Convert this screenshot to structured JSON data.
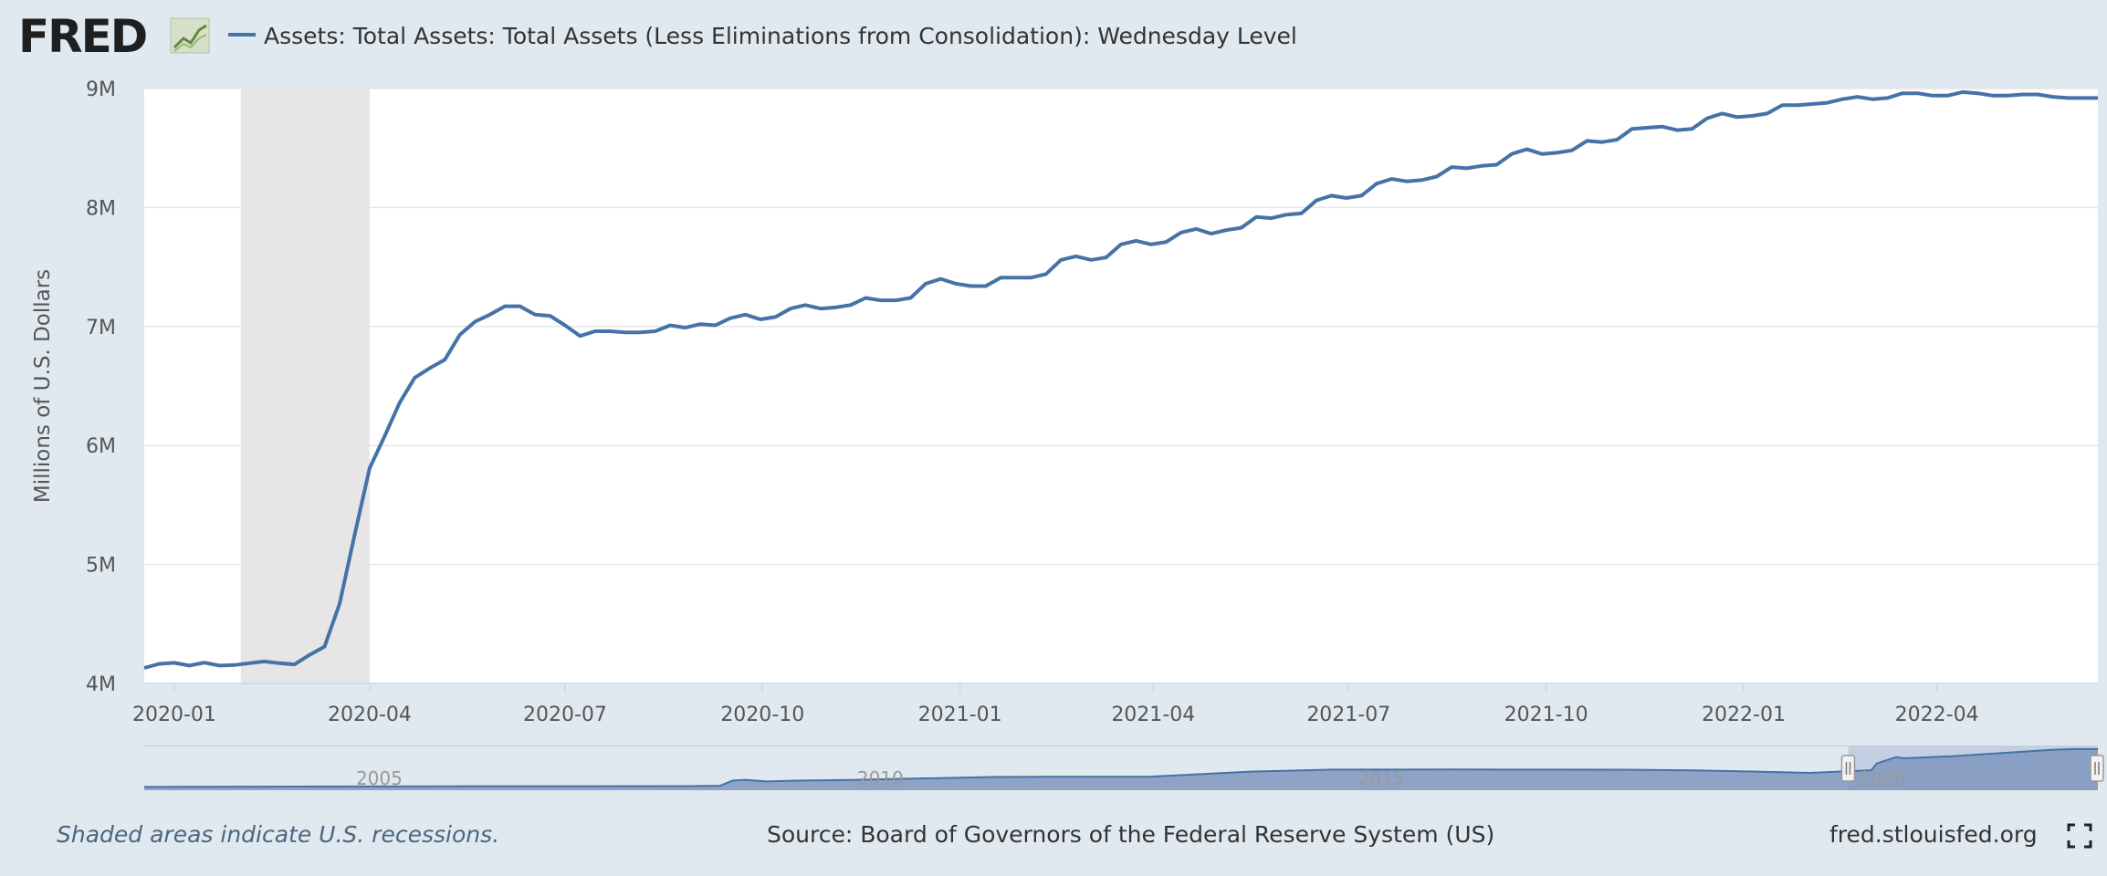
{
  "logo": {
    "text": "FRED"
  },
  "legend": {
    "series_label": "Assets: Total Assets: Total Assets (Less Eliminations from Consolidation): Wednesday Level"
  },
  "colors": {
    "line": "#4572a7",
    "recession": "#e6e6e6",
    "background": "#e1e9f0",
    "navigator_fill": "#7f96bd"
  },
  "footer": {
    "note": "Shaded areas indicate U.S. recessions.",
    "source": "Source: Board of Governors of the Federal Reserve System (US)",
    "link": "fred.stlouisfed.org"
  },
  "chart_data": {
    "type": "line",
    "title": "Assets: Total Assets: Total Assets (Less Eliminations from Consolidation): Wednesday Level",
    "xlabel": "",
    "ylabel": "Millions of U.S. Dollars",
    "ylim": [
      4000000,
      9000000
    ],
    "xlim": [
      "2019-12-18",
      "2022-06-15"
    ],
    "grid": true,
    "yticks": [
      {
        "value": 4000000,
        "label": "4M"
      },
      {
        "value": 5000000,
        "label": "5M"
      },
      {
        "value": 6000000,
        "label": "6M"
      },
      {
        "value": 7000000,
        "label": "7M"
      },
      {
        "value": 8000000,
        "label": "8M"
      },
      {
        "value": 9000000,
        "label": "9M"
      }
    ],
    "xticks": [
      {
        "date": "2020-01-01",
        "label": "2020-01"
      },
      {
        "date": "2020-04-01",
        "label": "2020-04"
      },
      {
        "date": "2020-07-01",
        "label": "2020-07"
      },
      {
        "date": "2020-10-01",
        "label": "2020-10"
      },
      {
        "date": "2021-01-01",
        "label": "2021-01"
      },
      {
        "date": "2021-04-01",
        "label": "2021-04"
      },
      {
        "date": "2021-07-01",
        "label": "2021-07"
      },
      {
        "date": "2021-10-01",
        "label": "2021-10"
      },
      {
        "date": "2022-01-01",
        "label": "2022-01"
      },
      {
        "date": "2022-04-01",
        "label": "2022-04"
      }
    ],
    "recessions": [
      {
        "start": "2020-02-01",
        "end": "2020-04-01"
      }
    ],
    "series": [
      {
        "name": "Assets: Total Assets: Total Assets (Less Eliminations from Consolidation): Wednesday Level",
        "points": [
          [
            "2019-12-18",
            4130000
          ],
          [
            "2019-12-25",
            4165000
          ],
          [
            "2020-01-01",
            4173000
          ],
          [
            "2020-01-08",
            4150000
          ],
          [
            "2020-01-15",
            4175000
          ],
          [
            "2020-01-22",
            4150000
          ],
          [
            "2020-01-29",
            4155000
          ],
          [
            "2020-02-05",
            4170000
          ],
          [
            "2020-02-12",
            4185000
          ],
          [
            "2020-02-19",
            4170000
          ],
          [
            "2020-02-26",
            4160000
          ],
          [
            "2020-03-04",
            4240000
          ],
          [
            "2020-03-11",
            4310000
          ],
          [
            "2020-03-18",
            4670000
          ],
          [
            "2020-03-25",
            5250000
          ],
          [
            "2020-04-01",
            5810000
          ],
          [
            "2020-04-08",
            6080000
          ],
          [
            "2020-04-15",
            6360000
          ],
          [
            "2020-04-22",
            6570000
          ],
          [
            "2020-04-29",
            6650000
          ],
          [
            "2020-05-06",
            6720000
          ],
          [
            "2020-05-13",
            6930000
          ],
          [
            "2020-05-20",
            7040000
          ],
          [
            "2020-05-27",
            7100000
          ],
          [
            "2020-06-03",
            7170000
          ],
          [
            "2020-06-10",
            7170000
          ],
          [
            "2020-06-17",
            7100000
          ],
          [
            "2020-06-24",
            7090000
          ],
          [
            "2020-07-01",
            7010000
          ],
          [
            "2020-07-08",
            6920000
          ],
          [
            "2020-07-15",
            6960000
          ],
          [
            "2020-07-22",
            6960000
          ],
          [
            "2020-07-29",
            6950000
          ],
          [
            "2020-08-05",
            6950000
          ],
          [
            "2020-08-12",
            6960000
          ],
          [
            "2020-08-19",
            7010000
          ],
          [
            "2020-08-26",
            6990000
          ],
          [
            "2020-09-02",
            7020000
          ],
          [
            "2020-09-09",
            7010000
          ],
          [
            "2020-09-16",
            7070000
          ],
          [
            "2020-09-23",
            7100000
          ],
          [
            "2020-09-30",
            7060000
          ],
          [
            "2020-10-07",
            7080000
          ],
          [
            "2020-10-14",
            7150000
          ],
          [
            "2020-10-21",
            7180000
          ],
          [
            "2020-10-28",
            7150000
          ],
          [
            "2020-11-04",
            7160000
          ],
          [
            "2020-11-11",
            7180000
          ],
          [
            "2020-11-18",
            7240000
          ],
          [
            "2020-11-25",
            7220000
          ],
          [
            "2020-12-02",
            7220000
          ],
          [
            "2020-12-09",
            7240000
          ],
          [
            "2020-12-16",
            7360000
          ],
          [
            "2020-12-23",
            7400000
          ],
          [
            "2020-12-30",
            7360000
          ],
          [
            "2021-01-06",
            7340000
          ],
          [
            "2021-01-13",
            7340000
          ],
          [
            "2021-01-20",
            7410000
          ],
          [
            "2021-01-27",
            7410000
          ],
          [
            "2021-02-03",
            7410000
          ],
          [
            "2021-02-10",
            7440000
          ],
          [
            "2021-02-17",
            7560000
          ],
          [
            "2021-02-24",
            7590000
          ],
          [
            "2021-03-03",
            7560000
          ],
          [
            "2021-03-10",
            7580000
          ],
          [
            "2021-03-17",
            7690000
          ],
          [
            "2021-03-24",
            7720000
          ],
          [
            "2021-03-31",
            7690000
          ],
          [
            "2021-04-07",
            7710000
          ],
          [
            "2021-04-14",
            7790000
          ],
          [
            "2021-04-21",
            7820000
          ],
          [
            "2021-04-28",
            7780000
          ],
          [
            "2021-05-05",
            7810000
          ],
          [
            "2021-05-12",
            7830000
          ],
          [
            "2021-05-19",
            7920000
          ],
          [
            "2021-05-26",
            7910000
          ],
          [
            "2021-06-02",
            7940000
          ],
          [
            "2021-06-09",
            7950000
          ],
          [
            "2021-06-16",
            8060000
          ],
          [
            "2021-06-23",
            8100000
          ],
          [
            "2021-06-30",
            8080000
          ],
          [
            "2021-07-07",
            8100000
          ],
          [
            "2021-07-14",
            8200000
          ],
          [
            "2021-07-21",
            8240000
          ],
          [
            "2021-07-28",
            8220000
          ],
          [
            "2021-08-04",
            8230000
          ],
          [
            "2021-08-11",
            8260000
          ],
          [
            "2021-08-18",
            8340000
          ],
          [
            "2021-08-25",
            8330000
          ],
          [
            "2021-09-01",
            8350000
          ],
          [
            "2021-09-08",
            8360000
          ],
          [
            "2021-09-15",
            8450000
          ],
          [
            "2021-09-22",
            8490000
          ],
          [
            "2021-09-29",
            8450000
          ],
          [
            "2021-10-06",
            8460000
          ],
          [
            "2021-10-13",
            8480000
          ],
          [
            "2021-10-20",
            8560000
          ],
          [
            "2021-10-27",
            8550000
          ],
          [
            "2021-11-03",
            8570000
          ],
          [
            "2021-11-10",
            8660000
          ],
          [
            "2021-11-17",
            8670000
          ],
          [
            "2021-11-24",
            8680000
          ],
          [
            "2021-12-01",
            8650000
          ],
          [
            "2021-12-08",
            8660000
          ],
          [
            "2021-12-15",
            8750000
          ],
          [
            "2021-12-22",
            8790000
          ],
          [
            "2021-12-29",
            8760000
          ],
          [
            "2022-01-05",
            8770000
          ],
          [
            "2022-01-12",
            8790000
          ],
          [
            "2022-01-19",
            8860000
          ],
          [
            "2022-01-26",
            8860000
          ],
          [
            "2022-02-02",
            8870000
          ],
          [
            "2022-02-09",
            8880000
          ],
          [
            "2022-02-16",
            8910000
          ],
          [
            "2022-02-23",
            8930000
          ],
          [
            "2022-03-02",
            8910000
          ],
          [
            "2022-03-09",
            8920000
          ],
          [
            "2022-03-16",
            8960000
          ],
          [
            "2022-03-23",
            8960000
          ],
          [
            "2022-03-30",
            8940000
          ],
          [
            "2022-04-06",
            8940000
          ],
          [
            "2022-04-13",
            8970000
          ],
          [
            "2022-04-20",
            8960000
          ],
          [
            "2022-04-27",
            8940000
          ],
          [
            "2022-05-04",
            8940000
          ],
          [
            "2022-05-11",
            8950000
          ],
          [
            "2022-05-18",
            8950000
          ],
          [
            "2022-05-25",
            8930000
          ],
          [
            "2022-06-01",
            8920000
          ],
          [
            "2022-06-08",
            8920000
          ],
          [
            "2022-06-15",
            8920000
          ]
        ]
      }
    ],
    "navigator": {
      "xticks": [
        {
          "date": "2005-01-01",
          "label": "2005"
        },
        {
          "date": "2010-01-01",
          "label": "2010"
        },
        {
          "date": "2015-01-01",
          "label": "2015"
        },
        {
          "date": "2020-01-01",
          "label": "2020"
        }
      ],
      "range": [
        "2002-12-18",
        "2022-06-15"
      ],
      "selected": [
        "2019-12-18",
        "2022-06-15"
      ],
      "points": [
        [
          "2002-12-18",
          720000
        ],
        [
          "2004-01-01",
          780000
        ],
        [
          "2005-01-01",
          820000
        ],
        [
          "2006-01-01",
          850000
        ],
        [
          "2007-01-01",
          880000
        ],
        [
          "2008-06-01",
          900000
        ],
        [
          "2008-09-15",
          960000
        ],
        [
          "2008-11-01",
          2100000
        ],
        [
          "2008-12-17",
          2250000
        ],
        [
          "2009-03-01",
          1900000
        ],
        [
          "2009-06-01",
          2050000
        ],
        [
          "2010-01-01",
          2230000
        ],
        [
          "2011-06-01",
          2870000
        ],
        [
          "2012-01-01",
          2920000
        ],
        [
          "2013-01-01",
          2950000
        ],
        [
          "2014-01-01",
          4030000
        ],
        [
          "2014-10-29",
          4480000
        ],
        [
          "2016-01-01",
          4490000
        ],
        [
          "2017-10-01",
          4460000
        ],
        [
          "2018-06-01",
          4320000
        ],
        [
          "2019-01-01",
          4060000
        ],
        [
          "2019-08-01",
          3760000
        ],
        [
          "2019-12-18",
          4130000
        ],
        [
          "2020-03-11",
          4310000
        ],
        [
          "2020-04-01",
          5810000
        ],
        [
          "2020-06-10",
          7170000
        ],
        [
          "2020-07-08",
          6920000
        ],
        [
          "2020-12-30",
          7360000
        ],
        [
          "2021-06-30",
          8080000
        ],
        [
          "2021-12-29",
          8760000
        ],
        [
          "2022-03-30",
          8940000
        ],
        [
          "2022-06-15",
          8920000
        ]
      ]
    }
  }
}
